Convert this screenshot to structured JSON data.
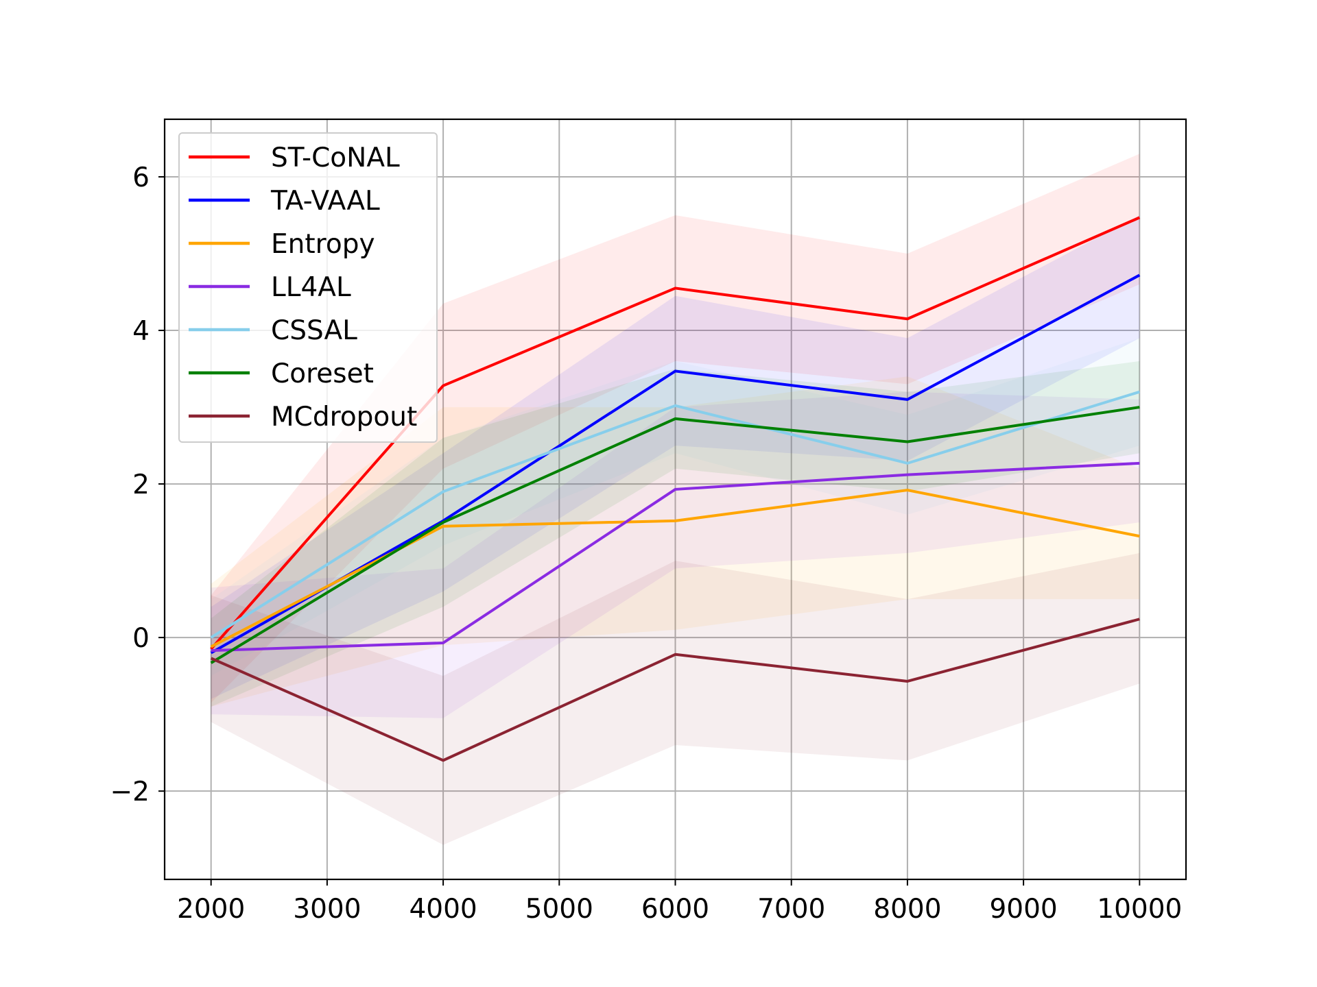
{
  "chart_data": {
    "type": "line",
    "title": "",
    "xlabel": "",
    "ylabel": "",
    "x": [
      2000,
      4000,
      6000,
      8000,
      10000
    ],
    "xlim": [
      1600,
      10400
    ],
    "ylim": [
      -3.15,
      6.75
    ],
    "xticks": [
      2000,
      3000,
      4000,
      5000,
      6000,
      7000,
      8000,
      9000,
      10000
    ],
    "yticks": [
      -2,
      0,
      2,
      4,
      6
    ],
    "ytick_labels": [
      "−2",
      "0",
      "2",
      "4",
      "6"
    ],
    "grid": true,
    "legend_position": "top-left",
    "series": [
      {
        "name": "ST-CoNAL",
        "color": "#ff0000",
        "values": [
          -0.15,
          3.28,
          4.55,
          4.15,
          5.47
        ],
        "band_lower": [
          -0.85,
          2.2,
          3.6,
          3.3,
          4.6
        ],
        "band_upper": [
          0.55,
          4.35,
          5.5,
          5.0,
          6.3
        ]
      },
      {
        "name": "TA-VAAL",
        "color": "#0000ff",
        "values": [
          -0.2,
          1.52,
          3.47,
          3.1,
          4.72
        ],
        "band_lower": [
          -0.8,
          0.6,
          2.5,
          2.3,
          3.9
        ],
        "band_upper": [
          0.4,
          2.4,
          4.45,
          3.9,
          5.5
        ]
      },
      {
        "name": "Entropy",
        "color": "#ffa500",
        "values": [
          -0.12,
          1.45,
          1.52,
          1.92,
          1.32
        ],
        "band_lower": [
          -0.9,
          -0.1,
          0.1,
          0.5,
          0.5
        ],
        "band_upper": [
          0.7,
          3.0,
          3.0,
          3.4,
          2.2
        ]
      },
      {
        "name": "LL4AL",
        "color": "#8a2be2",
        "values": [
          -0.17,
          -0.07,
          1.93,
          2.12,
          2.27
        ],
        "band_lower": [
          -1.0,
          -1.05,
          0.9,
          1.1,
          1.5
        ],
        "band_upper": [
          0.65,
          0.9,
          3.0,
          3.2,
          3.1
        ]
      },
      {
        "name": "CSSAL",
        "color": "#87ceeb",
        "values": [
          0.0,
          1.9,
          3.02,
          2.27,
          3.2
        ],
        "band_lower": [
          -0.5,
          1.2,
          2.4,
          1.6,
          2.5
        ],
        "band_upper": [
          0.5,
          2.6,
          3.6,
          2.9,
          3.9
        ]
      },
      {
        "name": "Coreset",
        "color": "#008000",
        "values": [
          -0.33,
          1.5,
          2.85,
          2.55,
          3.0
        ],
        "band_lower": [
          -0.9,
          0.4,
          2.2,
          1.9,
          2.4
        ],
        "band_upper": [
          0.25,
          2.6,
          3.5,
          3.2,
          3.6
        ]
      },
      {
        "name": "MCdropout",
        "color": "#8b2332",
        "values": [
          -0.27,
          -1.6,
          -0.22,
          -0.57,
          0.24
        ],
        "band_lower": [
          -1.1,
          -2.7,
          -1.4,
          -1.6,
          -0.6
        ],
        "band_upper": [
          0.55,
          -0.5,
          1.0,
          0.5,
          1.1
        ]
      }
    ]
  }
}
